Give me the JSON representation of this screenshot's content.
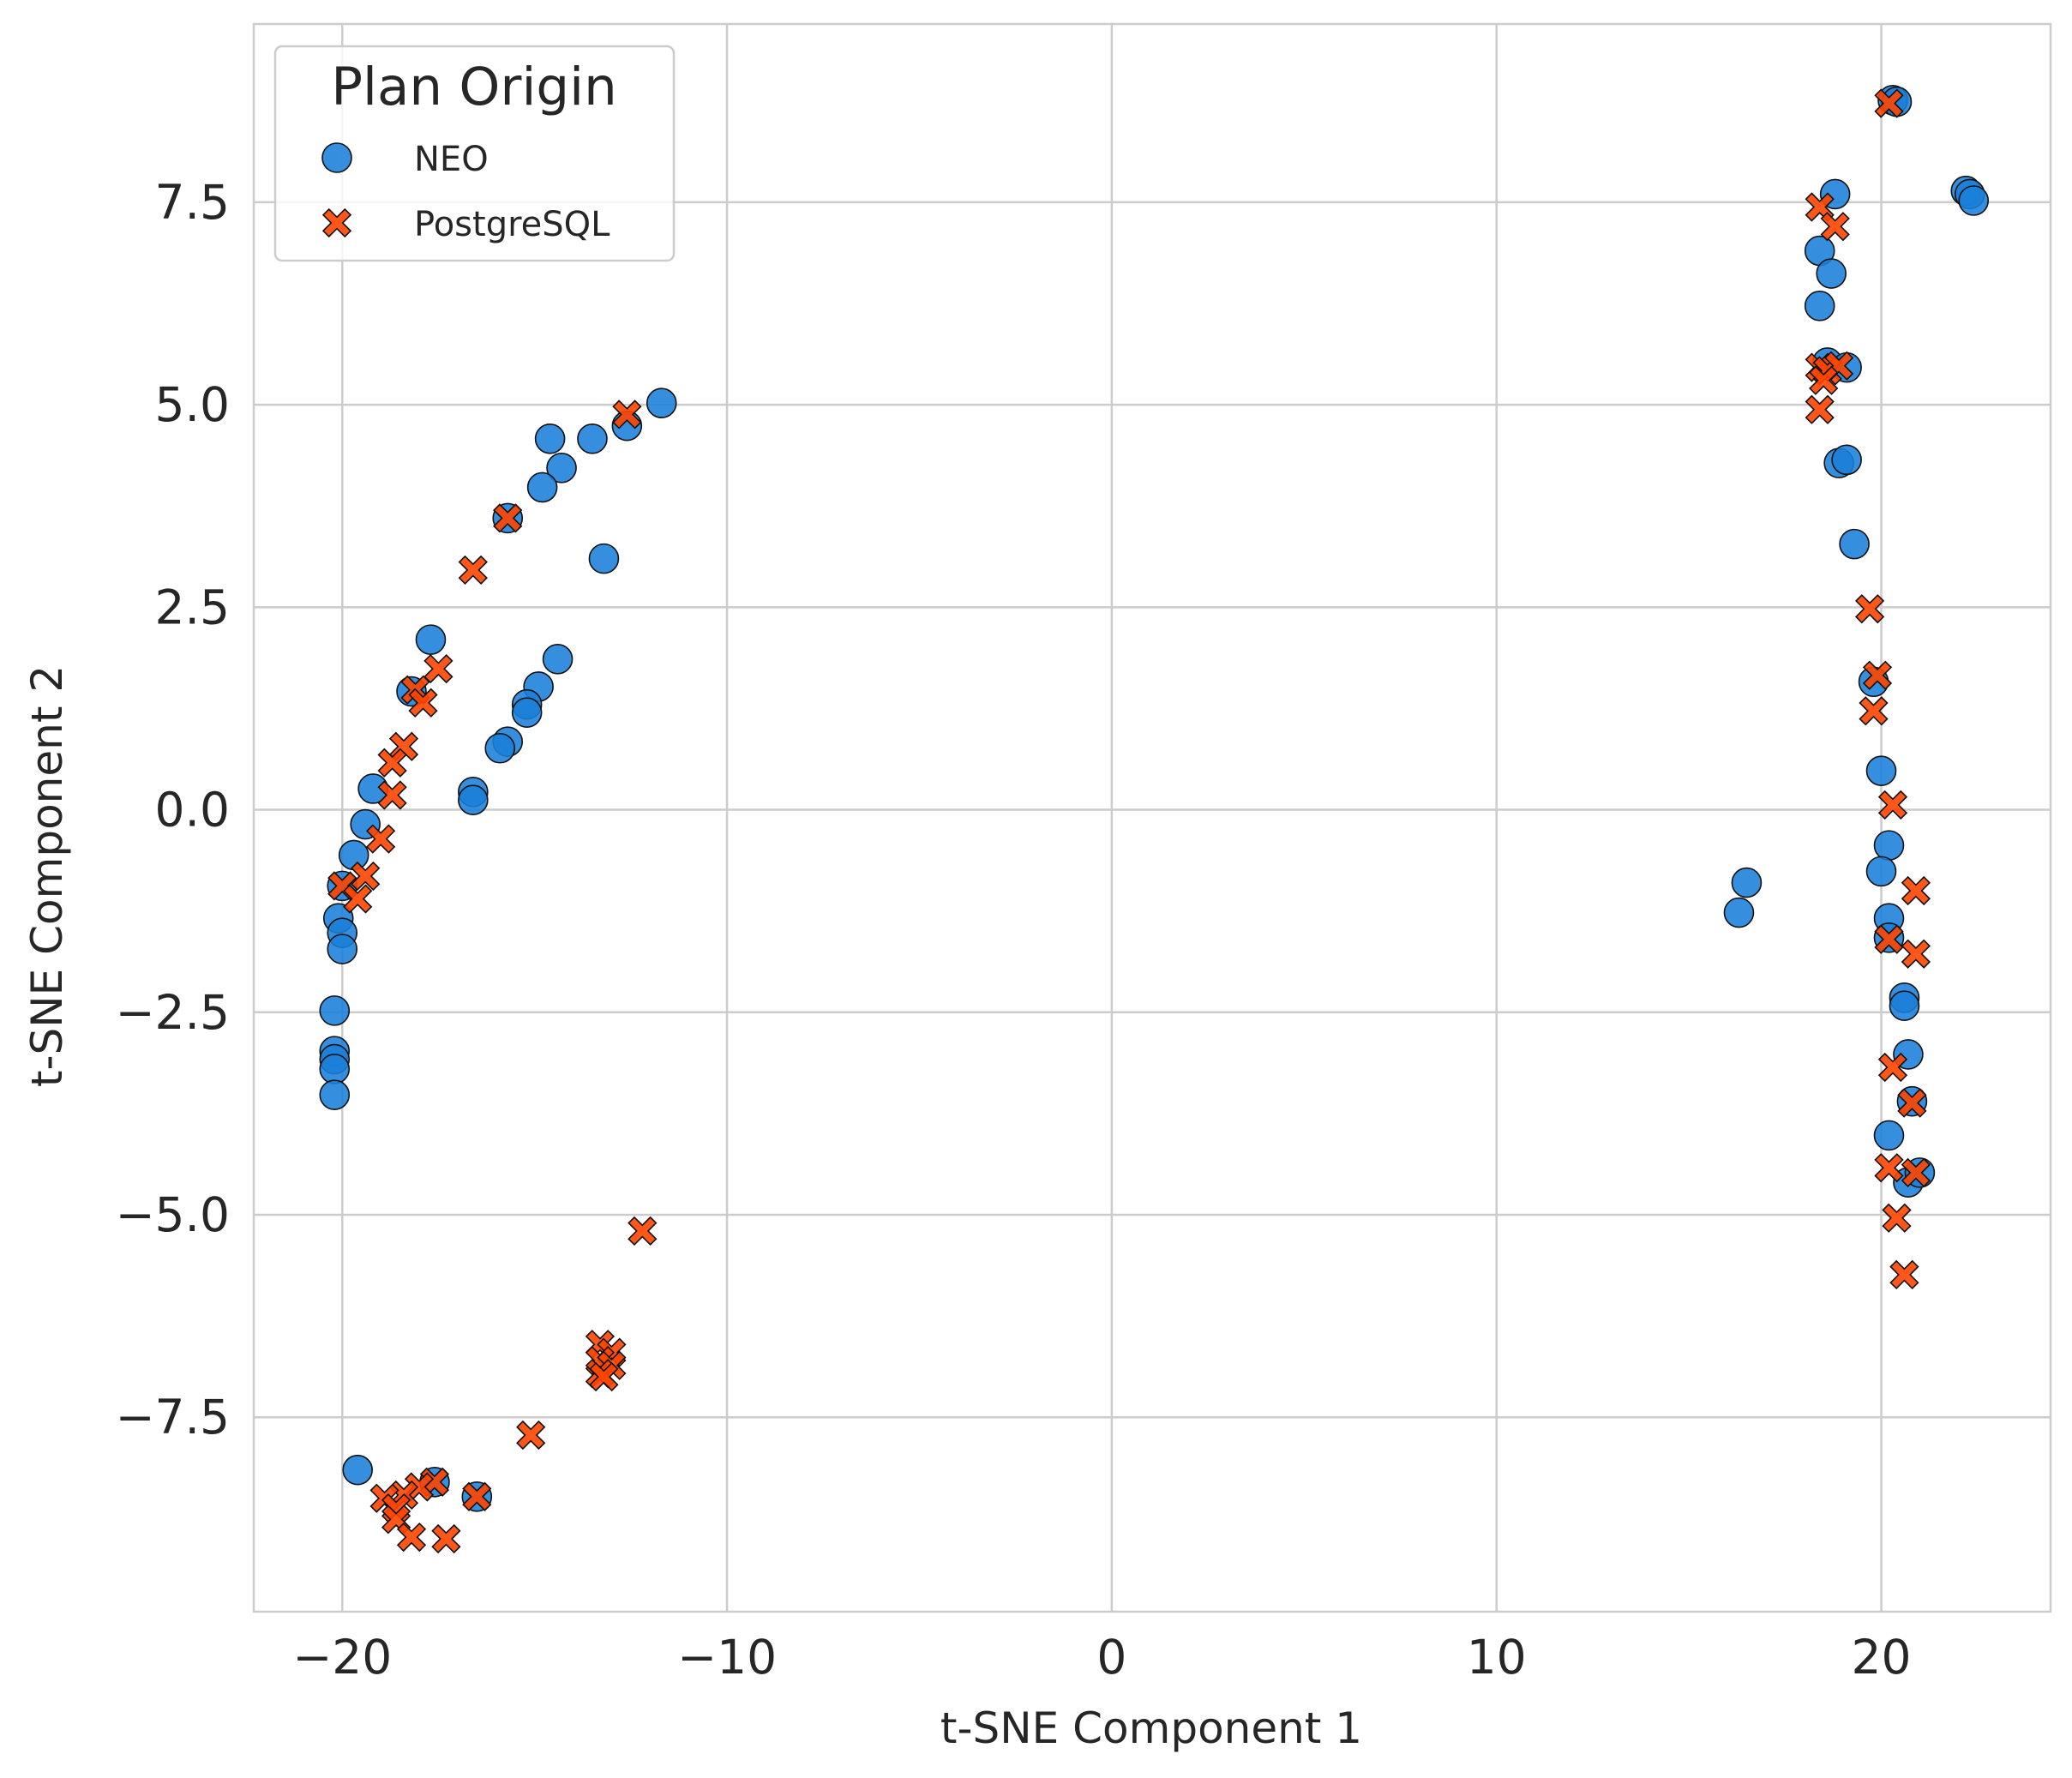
{
  "chart_data": {
    "type": "scatter",
    "title": "",
    "xlabel": "t-SNE Component 1",
    "ylabel": "t-SNE Component 2",
    "xlim": [
      -22.3,
      24.4
    ],
    "ylim": [
      -9.9,
      9.7
    ],
    "xticks": [
      -20,
      -10,
      0,
      10,
      20
    ],
    "xtick_labels": [
      "−20",
      "−10",
      "0",
      "10",
      "20"
    ],
    "yticks": [
      -7.5,
      -5.0,
      -2.5,
      0.0,
      2.5,
      5.0,
      7.5
    ],
    "ytick_labels": [
      "−7.5",
      "−5.0",
      "−2.5",
      "0.0",
      "2.5",
      "5.0",
      "7.5"
    ],
    "grid": true,
    "legend": {
      "title": "Plan Origin",
      "position": "upper-left"
    },
    "series": [
      {
        "name": "NEO",
        "marker": "circle",
        "color": "#1A80D9",
        "points": [
          [
            -11.7,
            5.02
          ],
          [
            -12.6,
            4.74
          ],
          [
            -13.5,
            4.58
          ],
          [
            -14.6,
            4.58
          ],
          [
            -14.3,
            4.22
          ],
          [
            -14.8,
            3.98
          ],
          [
            -15.7,
            3.6
          ],
          [
            -13.2,
            3.1
          ],
          [
            -17.7,
            2.1
          ],
          [
            -14.4,
            1.86
          ],
          [
            -14.9,
            1.52
          ],
          [
            -18.2,
            1.46
          ],
          [
            -15.2,
            1.3
          ],
          [
            -15.2,
            1.2
          ],
          [
            -15.7,
            0.84
          ],
          [
            -15.9,
            0.76
          ],
          [
            -16.6,
            0.22
          ],
          [
            -16.6,
            0.12
          ],
          [
            -19.2,
            0.26
          ],
          [
            -19.4,
            -0.18
          ],
          [
            -19.7,
            -0.56
          ],
          [
            -20.0,
            -0.94
          ],
          [
            -20.1,
            -1.34
          ],
          [
            -20.0,
            -1.52
          ],
          [
            -20.0,
            -1.72
          ],
          [
            -20.2,
            -2.48
          ],
          [
            -20.2,
            -2.98
          ],
          [
            -20.2,
            -3.08
          ],
          [
            -20.2,
            -3.2
          ],
          [
            -20.2,
            -3.52
          ],
          [
            -19.6,
            -8.15
          ],
          [
            -16.5,
            -8.48
          ],
          [
            -17.6,
            -8.3
          ],
          [
            16.3,
            -1.27
          ],
          [
            16.5,
            -0.9
          ],
          [
            20.3,
            8.76
          ],
          [
            20.4,
            8.74
          ],
          [
            22.2,
            7.64
          ],
          [
            22.3,
            7.6
          ],
          [
            22.4,
            7.52
          ],
          [
            18.8,
            7.6
          ],
          [
            18.4,
            6.9
          ],
          [
            18.7,
            6.62
          ],
          [
            18.4,
            6.22
          ],
          [
            18.6,
            5.52
          ],
          [
            19.1,
            5.46
          ],
          [
            18.9,
            4.28
          ],
          [
            19.1,
            4.32
          ],
          [
            19.3,
            3.28
          ],
          [
            19.8,
            1.58
          ],
          [
            20.0,
            0.48
          ],
          [
            20.2,
            -0.44
          ],
          [
            20.0,
            -0.76
          ],
          [
            20.2,
            -1.34
          ],
          [
            20.2,
            -1.58
          ],
          [
            20.6,
            -2.32
          ],
          [
            20.6,
            -2.42
          ],
          [
            20.7,
            -3.02
          ],
          [
            20.8,
            -3.6
          ],
          [
            20.2,
            -4.02
          ],
          [
            20.7,
            -4.6
          ],
          [
            21.0,
            -4.48
          ]
        ]
      },
      {
        "name": "PostgreSQL",
        "marker": "x",
        "color": "#FF4500",
        "points": [
          [
            -12.6,
            4.88
          ],
          [
            -15.7,
            3.6
          ],
          [
            -16.6,
            2.96
          ],
          [
            -17.5,
            1.74
          ],
          [
            -18.1,
            1.48
          ],
          [
            -17.9,
            1.32
          ],
          [
            -18.4,
            0.78
          ],
          [
            -18.7,
            0.58
          ],
          [
            -18.7,
            0.18
          ],
          [
            -19.0,
            -0.36
          ],
          [
            -19.4,
            -0.82
          ],
          [
            -20.0,
            -0.94
          ],
          [
            -19.6,
            -1.1
          ],
          [
            -12.2,
            -5.2
          ],
          [
            -13.3,
            -6.6
          ],
          [
            -13.0,
            -6.7
          ],
          [
            -13.3,
            -6.8
          ],
          [
            -13.0,
            -6.86
          ],
          [
            -13.3,
            -6.96
          ],
          [
            -13.2,
            -7.0
          ],
          [
            -15.1,
            -7.72
          ],
          [
            -17.6,
            -8.3
          ],
          [
            -18.0,
            -8.36
          ],
          [
            -18.4,
            -8.46
          ],
          [
            -18.9,
            -8.5
          ],
          [
            -16.5,
            -8.48
          ],
          [
            -18.6,
            -8.62
          ],
          [
            -18.6,
            -8.76
          ],
          [
            -18.2,
            -8.98
          ],
          [
            -17.3,
            -9.0
          ],
          [
            20.2,
            8.72
          ],
          [
            18.4,
            7.44
          ],
          [
            18.8,
            7.2
          ],
          [
            18.4,
            5.46
          ],
          [
            18.6,
            5.42
          ],
          [
            18.9,
            5.48
          ],
          [
            18.5,
            5.3
          ],
          [
            18.4,
            4.94
          ],
          [
            19.7,
            2.48
          ],
          [
            19.9,
            1.66
          ],
          [
            19.8,
            1.22
          ],
          [
            20.3,
            0.06
          ],
          [
            20.9,
            -1.0
          ],
          [
            20.2,
            -1.6
          ],
          [
            20.9,
            -1.78
          ],
          [
            20.3,
            -3.18
          ],
          [
            20.8,
            -3.62
          ],
          [
            20.2,
            -4.42
          ],
          [
            20.9,
            -4.48
          ],
          [
            20.4,
            -5.04
          ],
          [
            20.6,
            -5.74
          ]
        ]
      }
    ]
  }
}
